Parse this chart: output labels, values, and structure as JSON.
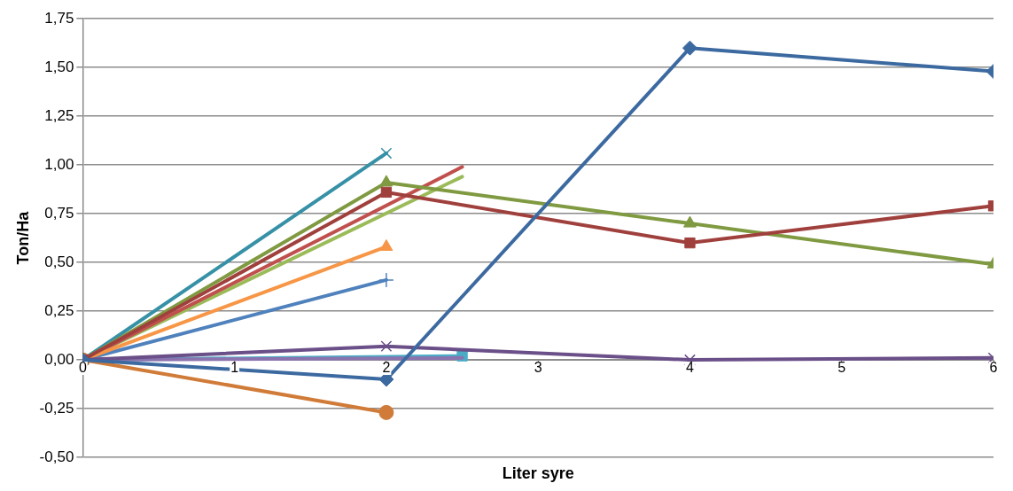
{
  "chart_data": {
    "type": "line",
    "xlabel": "Liter syre",
    "ylabel": "Ton/Ha",
    "grid": "y",
    "legend": false,
    "line_style": "solid",
    "xlim": [
      0,
      6
    ],
    "xticks": [
      0,
      1,
      2,
      3,
      4,
      5,
      6
    ],
    "ylim": [
      -0.5,
      1.75
    ],
    "yticks": [
      {
        "value": -0.5,
        "label": "-0,50"
      },
      {
        "value": -0.25,
        "label": "-0,25"
      },
      {
        "value": 0,
        "label": "0,00"
      },
      {
        "value": 0.25,
        "label": "0,25"
      },
      {
        "value": 0.5,
        "label": "0,50"
      },
      {
        "value": 0.75,
        "label": "0,75"
      },
      {
        "value": 1,
        "label": "1,00"
      },
      {
        "value": 1.25,
        "label": "1,25"
      },
      {
        "value": 1.5,
        "label": "1,50"
      },
      {
        "value": 1.75,
        "label": "1,75"
      }
    ],
    "series": [
      {
        "color": "#3c6aa0",
        "marker": "diamond",
        "x": [
          0,
          2,
          4,
          6
        ],
        "values": [
          0,
          -0.1,
          1.6,
          1.48
        ]
      },
      {
        "color": "#a0403d",
        "marker": "square",
        "x": [
          0,
          2,
          4,
          6
        ],
        "values": [
          0,
          0.86,
          0.6,
          0.79
        ]
      },
      {
        "color": "#7f9a41",
        "marker": "triangle",
        "x": [
          0,
          2,
          4,
          6
        ],
        "values": [
          0,
          0.91,
          0.7,
          0.49
        ]
      },
      {
        "color": "#6a4f88",
        "marker": "cross",
        "x": [
          0,
          2,
          4,
          6
        ],
        "values": [
          0,
          0.07,
          0,
          0.01
        ]
      },
      {
        "color": "#8a73ae",
        "marker": "none",
        "x": [
          0,
          2.5
        ],
        "values": [
          0,
          0.01
        ]
      },
      {
        "color": "#3791a6",
        "marker": "cross",
        "x": [
          0,
          2
        ],
        "values": [
          0,
          1.06
        ]
      },
      {
        "color": "#f79646",
        "marker": "triangle",
        "x": [
          0,
          2
        ],
        "values": [
          0,
          0.58
        ]
      },
      {
        "color": "#4f81bd",
        "marker": "plus",
        "x": [
          0,
          2
        ],
        "values": [
          0,
          0.41
        ]
      },
      {
        "color": "#d07b38",
        "marker": "circle",
        "x": [
          0,
          2
        ],
        "values": [
          0,
          -0.27
        ]
      },
      {
        "color": "#c0504d",
        "marker": "none",
        "x": [
          0,
          2.5
        ],
        "values": [
          0,
          0.99
        ]
      },
      {
        "color": "#9bbb59",
        "marker": "none",
        "x": [
          0,
          2.5
        ],
        "values": [
          0,
          0.94
        ]
      },
      {
        "color": "#4bacc6",
        "marker": "square",
        "x": [
          0,
          2.5
        ],
        "values": [
          0,
          0.02
        ]
      }
    ]
  }
}
